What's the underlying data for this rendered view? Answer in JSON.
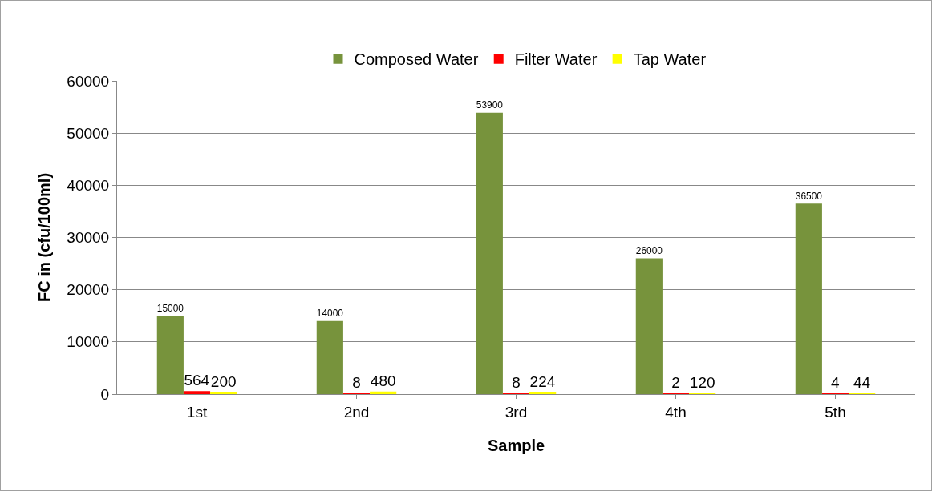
{
  "chart_data": {
    "type": "bar",
    "xlabel": "Sample",
    "ylabel": "FC in (cfu/100ml)",
    "categories": [
      "1st",
      "2nd",
      "3rd",
      "4th",
      "5th"
    ],
    "series": [
      {
        "name": "Composed Water",
        "color": "#77933c",
        "values": [
          15000,
          14000,
          53900,
          26000,
          36500
        ]
      },
      {
        "name": "Filter Water",
        "color": "#ff0000",
        "values": [
          564,
          8,
          8,
          2,
          4
        ]
      },
      {
        "name": "Tap Water",
        "color": "#ffff00",
        "values": [
          200,
          480,
          224,
          120,
          44
        ]
      }
    ],
    "ylim": [
      0,
      60000
    ],
    "yticks": [
      0,
      10000,
      20000,
      30000,
      40000,
      50000,
      60000
    ],
    "grid": "y",
    "legend": "top",
    "data_labels": true
  }
}
